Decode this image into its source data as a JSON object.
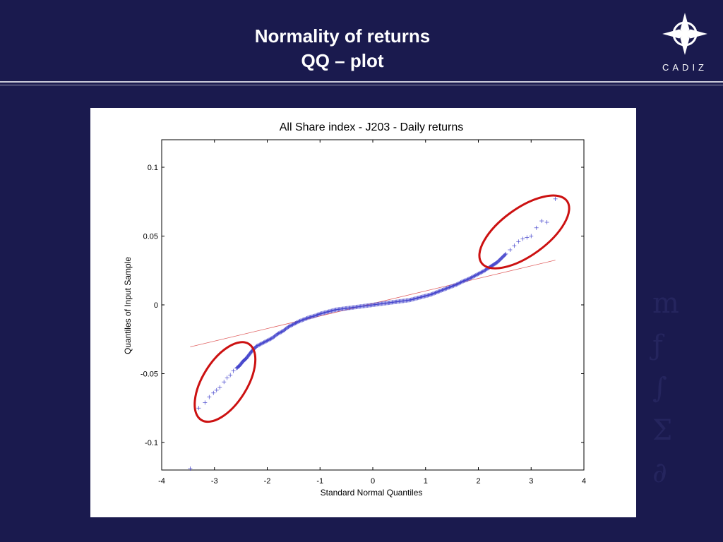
{
  "slide": {
    "title_line1": "Normality of returns",
    "title_line2": "QQ – plot",
    "logo_text": "CADIZ",
    "accent_color": "#1a1a4e"
  },
  "chart_data": {
    "type": "scatter",
    "title": "All Share index - J203 - Daily returns",
    "xlabel": "Standard Normal Quantiles",
    "ylabel": "Quantiles of Input Sample",
    "xlim": [
      -4,
      4
    ],
    "ylim": [
      -0.12,
      0.12
    ],
    "xticks": [
      -4,
      -3,
      -2,
      -1,
      0,
      1,
      2,
      3,
      4
    ],
    "yticks": [
      -0.1,
      -0.05,
      0,
      0.05,
      0.1
    ],
    "xtick_labels": [
      "-4",
      "-3",
      "-2",
      "-1",
      "0",
      "1",
      "2",
      "3",
      "4"
    ],
    "ytick_labels": [
      "-0.1",
      "-0.05",
      "0",
      "0.05",
      "0.1"
    ],
    "grid": false,
    "marker": "+",
    "marker_color": "#4444cc",
    "reference_line": {
      "color": "#e06060",
      "x": [
        -3.46,
        3.46
      ],
      "y": [
        -0.0305,
        0.0325
      ]
    },
    "points": [
      [
        -3.46,
        -0.119
      ],
      [
        -3.3,
        -0.075
      ],
      [
        -3.18,
        -0.071
      ],
      [
        -3.1,
        -0.067
      ],
      [
        -3.02,
        -0.064
      ],
      [
        -2.96,
        -0.062
      ],
      [
        -2.9,
        -0.06
      ],
      [
        -2.82,
        -0.056
      ],
      [
        -2.76,
        -0.053
      ],
      [
        -2.7,
        -0.051
      ],
      [
        -2.64,
        -0.048
      ],
      [
        -2.58,
        -0.046
      ],
      [
        -2.52,
        -0.044
      ],
      [
        -2.46,
        -0.041
      ],
      [
        -2.4,
        -0.039
      ],
      [
        -2.34,
        -0.036
      ],
      [
        -2.28,
        -0.033
      ],
      [
        -2.2,
        -0.03
      ],
      [
        -2.1,
        -0.028
      ],
      [
        -2.0,
        -0.026
      ],
      [
        -1.9,
        -0.024
      ],
      [
        -1.8,
        -0.021
      ],
      [
        -1.7,
        -0.019
      ],
      [
        -1.6,
        -0.016
      ],
      [
        -1.5,
        -0.014
      ],
      [
        -1.4,
        -0.012
      ],
      [
        -1.3,
        -0.0105
      ],
      [
        -1.2,
        -0.009
      ],
      [
        -1.1,
        -0.008
      ],
      [
        -1.0,
        -0.0065
      ],
      [
        -0.9,
        -0.0055
      ],
      [
        -0.8,
        -0.0045
      ],
      [
        -0.7,
        -0.0035
      ],
      [
        -0.6,
        -0.003
      ],
      [
        -0.5,
        -0.0025
      ],
      [
        -0.4,
        -0.002
      ],
      [
        -0.3,
        -0.0015
      ],
      [
        -0.2,
        -0.001
      ],
      [
        -0.1,
        -0.0005
      ],
      [
        0.0,
        0.0
      ],
      [
        0.1,
        0.0005
      ],
      [
        0.2,
        0.001
      ],
      [
        0.3,
        0.0015
      ],
      [
        0.4,
        0.002
      ],
      [
        0.5,
        0.0025
      ],
      [
        0.6,
        0.003
      ],
      [
        0.7,
        0.0035
      ],
      [
        0.8,
        0.0045
      ],
      [
        0.9,
        0.0055
      ],
      [
        1.0,
        0.0065
      ],
      [
        1.1,
        0.0075
      ],
      [
        1.2,
        0.009
      ],
      [
        1.3,
        0.0105
      ],
      [
        1.4,
        0.012
      ],
      [
        1.5,
        0.0135
      ],
      [
        1.6,
        0.015
      ],
      [
        1.7,
        0.017
      ],
      [
        1.8,
        0.0185
      ],
      [
        1.9,
        0.0205
      ],
      [
        2.0,
        0.0225
      ],
      [
        2.1,
        0.0245
      ],
      [
        2.2,
        0.027
      ],
      [
        2.28,
        0.029
      ],
      [
        2.36,
        0.031
      ],
      [
        2.44,
        0.034
      ],
      [
        2.52,
        0.037
      ],
      [
        2.6,
        0.04
      ],
      [
        2.68,
        0.043
      ],
      [
        2.76,
        0.046
      ],
      [
        2.84,
        0.048
      ],
      [
        2.92,
        0.049
      ],
      [
        3.0,
        0.05
      ],
      [
        3.1,
        0.056
      ],
      [
        3.2,
        0.061
      ],
      [
        3.3,
        0.06
      ],
      [
        3.46,
        0.077
      ]
    ],
    "highlight_ellipses": [
      {
        "color": "#cc1111",
        "cx": -2.8,
        "cy": -0.056,
        "rx": 0.85,
        "ry": 0.011,
        "rotate_deg": -58
      },
      {
        "color": "#cc1111",
        "cx": 2.87,
        "cy": 0.053,
        "rx": 1.0,
        "ry": 0.012,
        "rotate_deg": -36
      }
    ]
  }
}
